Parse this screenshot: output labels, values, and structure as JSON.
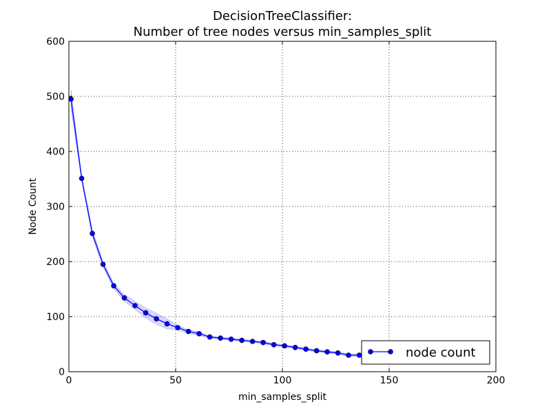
{
  "chart_data": {
    "type": "line",
    "title": "DecisionTreeClassifier:",
    "subtitle": "Number of tree nodes versus min_samples_split",
    "xlabel": "min_samples_split",
    "ylabel": "Node Count",
    "xlim": [
      0,
      200
    ],
    "ylim": [
      0,
      600
    ],
    "xticks": [
      0,
      50,
      100,
      150,
      200
    ],
    "yticks": [
      0,
      100,
      200,
      300,
      400,
      500,
      600
    ],
    "xtick_labels": [
      "0",
      "50",
      "100",
      "150",
      "200"
    ],
    "ytick_labels": [
      "0",
      "100",
      "200",
      "300",
      "400",
      "500",
      "600"
    ],
    "grid": true,
    "legend_position": "lower-right",
    "colors": {
      "line": "#0000ff",
      "band": "#0000ff"
    },
    "series": [
      {
        "name": "node count",
        "x": [
          1,
          6,
          11,
          16,
          21,
          26,
          31,
          36,
          41,
          46,
          51,
          56,
          61,
          66,
          71,
          76,
          81,
          86,
          91,
          96,
          101,
          106,
          111,
          116,
          121,
          126,
          131,
          136,
          141,
          146,
          151,
          156,
          161,
          166,
          171,
          176,
          181,
          186,
          191,
          196
        ],
        "values": [
          495,
          351,
          251,
          195,
          156,
          134,
          120,
          107,
          96,
          87,
          80,
          73,
          69,
          63,
          61,
          59,
          57,
          55,
          53,
          49,
          47,
          44,
          41,
          38,
          36,
          34,
          30,
          30,
          29,
          28,
          27,
          26,
          25,
          24,
          23,
          22,
          21,
          20,
          19,
          18
        ],
        "band_lower": [
          478,
          347,
          245,
          190,
          151,
          128,
          113,
          98,
          86,
          78,
          76,
          70,
          66,
          61,
          59,
          57,
          55,
          53,
          51,
          47,
          45,
          42,
          39,
          36,
          34,
          32,
          28,
          28,
          27,
          26,
          25,
          24,
          23,
          22,
          21,
          20,
          19,
          18,
          17,
          16
        ],
        "band_upper": [
          512,
          355,
          257,
          200,
          161,
          140,
          127,
          116,
          106,
          96,
          84,
          76,
          72,
          65,
          63,
          61,
          59,
          57,
          55,
          51,
          49,
          46,
          43,
          40,
          38,
          36,
          32,
          32,
          31,
          30,
          29,
          28,
          27,
          26,
          25,
          24,
          23,
          22,
          21,
          20
        ]
      }
    ]
  }
}
